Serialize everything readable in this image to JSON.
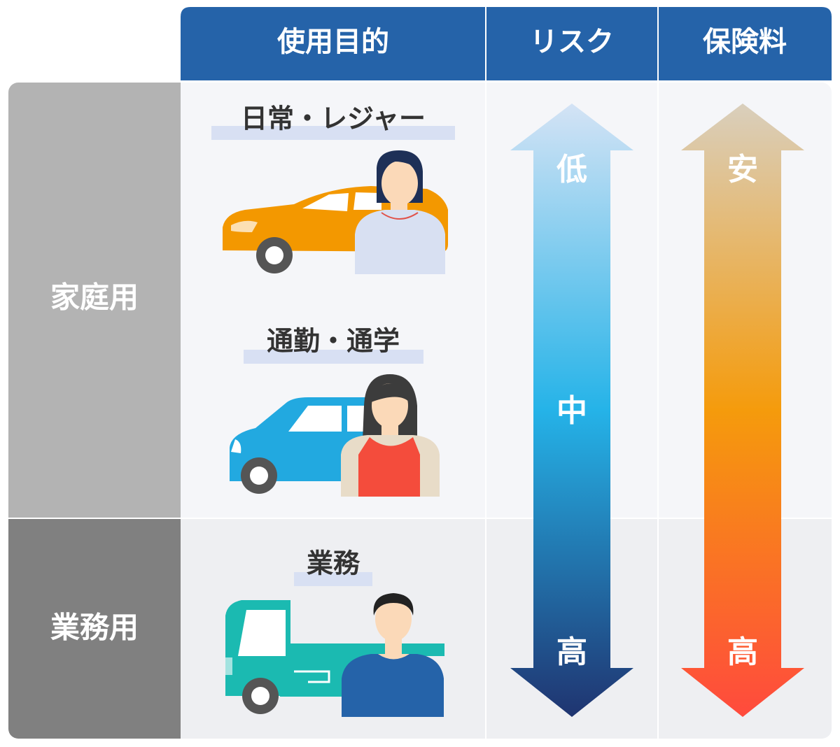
{
  "header": {
    "columns": [
      "使用目的",
      "リスク",
      "保険料"
    ]
  },
  "rows": [
    {
      "label": "家庭用",
      "purposes": [
        "日常・レジャー",
        "通勤・通学"
      ]
    },
    {
      "label": "業務用",
      "purposes": [
        "業務"
      ]
    }
  ],
  "risk_arrow": {
    "labels": [
      "低",
      "中",
      "高"
    ]
  },
  "premium_arrow": {
    "labels": [
      "安",
      "高"
    ]
  }
}
